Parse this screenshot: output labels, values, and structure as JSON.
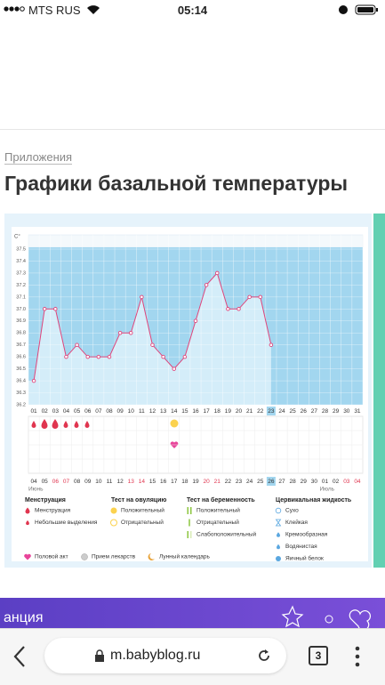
{
  "status_bar": {
    "carrier": "MTS RUS",
    "time": "05:14"
  },
  "header": {
    "section": "Приложения",
    "title": "Графики базальной температуры"
  },
  "chart_data": {
    "type": "line",
    "y_unit": "C°",
    "categories": [
      "01",
      "02",
      "03",
      "04",
      "05",
      "06",
      "07",
      "08",
      "09",
      "10",
      "11",
      "12",
      "13",
      "14",
      "15",
      "16",
      "17",
      "18",
      "19",
      "20",
      "21",
      "22",
      "23",
      "24",
      "25",
      "26",
      "27",
      "28",
      "29",
      "30",
      "31"
    ],
    "current_index_label": "23",
    "values": [
      36.4,
      37.0,
      37.0,
      36.6,
      36.7,
      36.6,
      36.6,
      36.6,
      36.8,
      36.8,
      37.1,
      36.7,
      36.6,
      36.5,
      36.6,
      36.9,
      37.2,
      37.3,
      37.0,
      37.0,
      37.1,
      37.1,
      36.7,
      null,
      null,
      null,
      null,
      null,
      null,
      null,
      null
    ],
    "color": "#e0457b",
    "ylim": [
      36.2,
      37.5
    ],
    "yticks": [
      36.2,
      36.3,
      36.4,
      36.5,
      36.6,
      36.7,
      36.8,
      36.9,
      {
        "value": 37,
        "label": "37.0"
      },
      37.1,
      37.2,
      37.3,
      37.4,
      37.5
    ],
    "grid": true,
    "dates": [
      {
        "label": "04"
      },
      {
        "label": "05"
      },
      {
        "label": "06",
        "weekend": true
      },
      {
        "label": "07",
        "weekend": true
      },
      {
        "label": "08"
      },
      {
        "label": "09"
      },
      {
        "label": "10"
      },
      {
        "label": "11"
      },
      {
        "label": "12"
      },
      {
        "label": "13",
        "weekend": true
      },
      {
        "label": "14",
        "weekend": true
      },
      {
        "label": "15"
      },
      {
        "label": "16"
      },
      {
        "label": "17"
      },
      {
        "label": "18"
      },
      {
        "label": "19"
      },
      {
        "label": "20",
        "weekend": true
      },
      {
        "label": "21",
        "weekend": true
      },
      {
        "label": "22"
      },
      {
        "label": "23"
      },
      {
        "label": "24"
      },
      {
        "label": "25"
      },
      {
        "label": "26",
        "current": true
      },
      {
        "label": "27"
      },
      {
        "label": "28"
      },
      {
        "label": "29"
      },
      {
        "label": "30"
      },
      {
        "label": "01"
      },
      {
        "label": "02"
      },
      {
        "label": "03",
        "weekend": true
      },
      {
        "label": "04",
        "weekend": true
      }
    ],
    "months": [
      "Июнь",
      "Июль"
    ],
    "legend": [
      {
        "heading": "Менструация",
        "items": [
          "Менструация",
          "Небольшие выделения"
        ]
      },
      {
        "heading": "Тест на овуляцию",
        "items": [
          "Положительный",
          "Отрицательный"
        ]
      },
      {
        "heading": "Тест на беременность",
        "items": [
          "Положительный",
          "Отрицательный",
          "Слабоположительный"
        ]
      },
      {
        "heading": "Цервикальная жидкость",
        "items": [
          "Сухо",
          "Клейкая",
          "Кремообразная",
          "Водянистая",
          "Яичный белок"
        ]
      }
    ],
    "legend_extra": [
      "Половой акт",
      "Прием лекарств",
      "Лунный календарь"
    ]
  },
  "banner": {
    "text": "анция"
  },
  "browser": {
    "url": "m.babyblog.ru",
    "tabs": "3"
  }
}
